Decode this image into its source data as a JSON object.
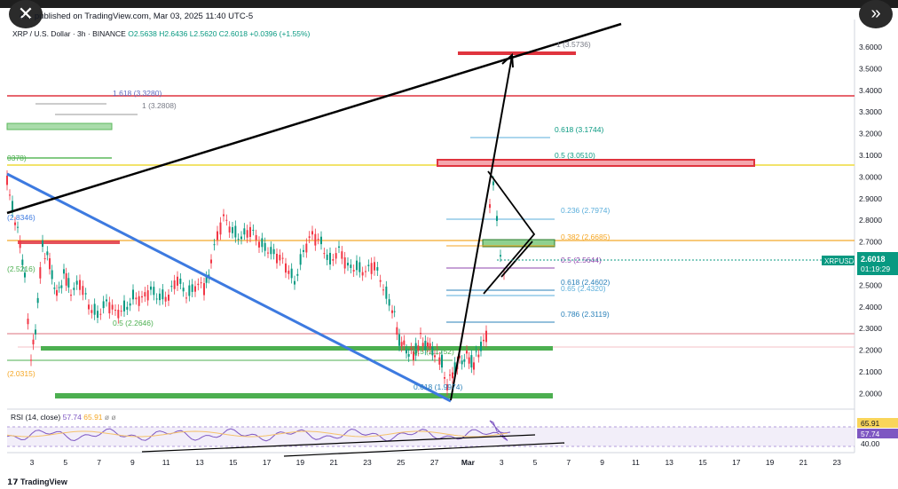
{
  "header": {
    "close_icon": "close-icon",
    "forward_icon": "double-chevron-right-icon",
    "published": "c… published on TradingView.com, Mar 03, 2025 11:40 UTC-5",
    "symbol": "XRP / U.S. Dollar · 3h · BINANCE",
    "ohlc": "O2.5638 H2.6436 L2.5620 C2.6018 +0.0396 (+1.55%)"
  },
  "footer": {
    "brand": "TradingView"
  },
  "colors": {
    "up": "#089981",
    "down": "#f23645",
    "blue_line": "#3d7ae0",
    "green_zone": "#5cb85c",
    "red_zone": "#e0343e",
    "yellow_line": "#f2e36b",
    "orange_line": "#f5a623"
  },
  "chart_data": {
    "type": "candlestick",
    "price_axis": {
      "ticks": [
        "3.6000",
        "3.5000",
        "3.4000",
        "3.3000",
        "3.2000",
        "3.1000",
        "3.0000",
        "2.9000",
        "2.8000",
        "2.7000",
        "2.6000",
        "2.5000",
        "2.4000",
        "2.3000",
        "2.2000",
        "2.1000",
        "2.0000"
      ],
      "ylim": [
        1.95,
        3.65
      ]
    },
    "time_axis": {
      "ticks": [
        "3",
        "5",
        "7",
        "9",
        "11",
        "13",
        "15",
        "17",
        "19",
        "21",
        "23",
        "25",
        "27",
        "Mar",
        "3",
        "5",
        "7",
        "9",
        "11",
        "13",
        "15",
        "17",
        "19",
        "21",
        "23"
      ]
    },
    "price_label": {
      "symbol": "XRPUSD",
      "price": "2.6018",
      "countdown": "01:19:29"
    },
    "fib_labels_right": [
      "1 (3.5736)",
      "0.618 (3.1744)",
      "0.5 (3.0510)",
      "0.236 (2.7974)",
      "0.382 (2.6685)",
      "0.5 (2.5644)",
      "0.618 (2.4602)",
      "0.65 (2.4320)",
      "0.786 (2.3119)"
    ],
    "fib_labels_left": [
      "1.618 (3.3280)",
      "1 (3.2808)",
      "0.5 (2.2646)",
      "0.5 (2.1752)",
      "0.618 (1.9974)"
    ],
    "left_edge_labels": [
      "0378)",
      "(2.8346)",
      "(2.5216)",
      "(2.0315)"
    ],
    "rsi": {
      "label": "RSI (14, close)",
      "value": "57.74",
      "ma": "65.91",
      "level": "40.00"
    }
  }
}
